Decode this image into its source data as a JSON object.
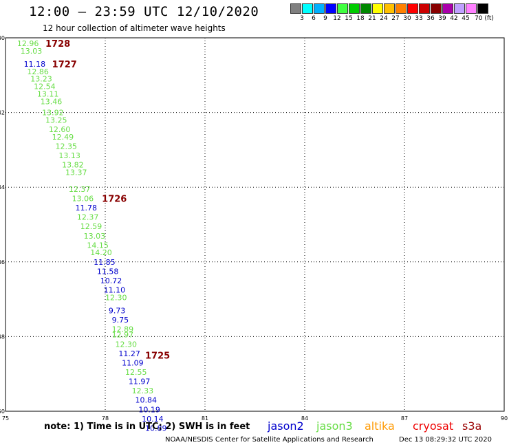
{
  "header": {
    "title": "12:00 — 23:59 UTC 12/10/2020",
    "subtitle": "12 hour collection of altimeter wave heights"
  },
  "scale": {
    "colors": [
      "#808080",
      "#00ffff",
      "#00b0ff",
      "#0000ff",
      "#40ff40",
      "#00cc00",
      "#008800",
      "#ffff00",
      "#ffc000",
      "#ff8000",
      "#ff0000",
      "#cc0000",
      "#880000",
      "#aa00aa",
      "#c0a0ff",
      "#ff80ff",
      "#000000"
    ],
    "labels": [
      "3",
      "6",
      "9",
      "12",
      "15",
      "18",
      "21",
      "24",
      "27",
      "30",
      "33",
      "36",
      "39",
      "42",
      "45",
      "70 (ft)"
    ]
  },
  "map": {
    "lon_ticks": [
      "75",
      "78",
      "81",
      "84",
      "87",
      "90"
    ],
    "lat_ticks": [
      "-40",
      "-42",
      "-44",
      "-46",
      "-48",
      "-50"
    ],
    "lon_range": [
      75,
      90
    ],
    "lat_range": [
      -40,
      -50
    ],
    "grid": "dotted",
    "passes": [
      {
        "label": "1728",
        "lon": 76.2,
        "lat": -40.15
      },
      {
        "label": "1727",
        "lon": 76.4,
        "lat": -40.7
      },
      {
        "label": "1726",
        "lon": 77.9,
        "lat": -44.3
      },
      {
        "label": "1725",
        "lon": 79.2,
        "lat": -48.5
      }
    ],
    "points": [
      {
        "v": "12.96",
        "lon": 75.35,
        "lat": -40.15,
        "sat": "jason3"
      },
      {
        "v": "13.03",
        "lon": 75.45,
        "lat": -40.35,
        "sat": "jason3"
      },
      {
        "v": "11.18",
        "lon": 75.55,
        "lat": -40.7,
        "sat": "jason2"
      },
      {
        "v": "12.86",
        "lon": 75.65,
        "lat": -40.9,
        "sat": "jason3"
      },
      {
        "v": "13.23",
        "lon": 75.75,
        "lat": -41.1,
        "sat": "jason3"
      },
      {
        "v": "12.54",
        "lon": 75.85,
        "lat": -41.3,
        "sat": "jason3"
      },
      {
        "v": "13.11",
        "lon": 75.95,
        "lat": -41.5,
        "sat": "jason3"
      },
      {
        "v": "13.46",
        "lon": 76.05,
        "lat": -41.7,
        "sat": "jason3"
      },
      {
        "v": "13.92",
        "lon": 76.1,
        "lat": -42.0,
        "sat": "jason3"
      },
      {
        "v": "13.25",
        "lon": 76.2,
        "lat": -42.2,
        "sat": "jason3"
      },
      {
        "v": "12.60",
        "lon": 76.3,
        "lat": -42.45,
        "sat": "jason3"
      },
      {
        "v": "12.49",
        "lon": 76.4,
        "lat": -42.65,
        "sat": "jason3"
      },
      {
        "v": "12.35",
        "lon": 76.5,
        "lat": -42.9,
        "sat": "jason3"
      },
      {
        "v": "13.13",
        "lon": 76.6,
        "lat": -43.15,
        "sat": "jason3"
      },
      {
        "v": "13.82",
        "lon": 76.7,
        "lat": -43.4,
        "sat": "jason3"
      },
      {
        "v": "13.37",
        "lon": 76.8,
        "lat": -43.6,
        "sat": "jason3"
      },
      {
        "v": "12.37",
        "lon": 76.9,
        "lat": -44.05,
        "sat": "jason3"
      },
      {
        "v": "13.06",
        "lon": 77.0,
        "lat": -44.3,
        "sat": "jason3"
      },
      {
        "v": "11.78",
        "lon": 77.1,
        "lat": -44.55,
        "sat": "jason2"
      },
      {
        "v": "12.37",
        "lon": 77.15,
        "lat": -44.8,
        "sat": "jason3"
      },
      {
        "v": "12.59",
        "lon": 77.25,
        "lat": -45.05,
        "sat": "jason3"
      },
      {
        "v": "13.03",
        "lon": 77.35,
        "lat": -45.3,
        "sat": "jason3"
      },
      {
        "v": "14.15",
        "lon": 77.45,
        "lat": -45.55,
        "sat": "jason3"
      },
      {
        "v": "14.20",
        "lon": 77.55,
        "lat": -45.75,
        "sat": "jason3"
      },
      {
        "v": "11.85",
        "lon": 77.65,
        "lat": -46.0,
        "sat": "jason2"
      },
      {
        "v": "11.58",
        "lon": 77.75,
        "lat": -46.25,
        "sat": "jason2"
      },
      {
        "v": "10.72",
        "lon": 77.85,
        "lat": -46.5,
        "sat": "jason2"
      },
      {
        "v": "11.10",
        "lon": 77.95,
        "lat": -46.75,
        "sat": "jason2"
      },
      {
        "v": "12.30",
        "lon": 78.0,
        "lat": -46.95,
        "sat": "jason3"
      },
      {
        "v": "9.73",
        "lon": 78.1,
        "lat": -47.3,
        "sat": "jason2"
      },
      {
        "v": "9.75",
        "lon": 78.2,
        "lat": -47.55,
        "sat": "jason2"
      },
      {
        "v": "12.89",
        "lon": 78.2,
        "lat": -47.8,
        "sat": "jason3"
      },
      {
        "v": "12.97",
        "lon": 78.2,
        "lat": -47.95,
        "sat": "jason3"
      },
      {
        "v": "12.30",
        "lon": 78.3,
        "lat": -48.2,
        "sat": "jason3"
      },
      {
        "v": "11.27",
        "lon": 78.4,
        "lat": -48.45,
        "sat": "jason2"
      },
      {
        "v": "11.09",
        "lon": 78.5,
        "lat": -48.7,
        "sat": "jason2"
      },
      {
        "v": "12.55",
        "lon": 78.6,
        "lat": -48.95,
        "sat": "jason3"
      },
      {
        "v": "11.97",
        "lon": 78.7,
        "lat": -49.2,
        "sat": "jason2"
      },
      {
        "v": "12.33",
        "lon": 78.8,
        "lat": -49.45,
        "sat": "jason3"
      },
      {
        "v": "10.84",
        "lon": 78.9,
        "lat": -49.7,
        "sat": "jason2"
      },
      {
        "v": "10.19",
        "lon": 79.0,
        "lat": -49.95,
        "sat": "jason2"
      },
      {
        "v": "10.14",
        "lon": 79.1,
        "lat": -50.2,
        "sat": "jason2"
      },
      {
        "v": "10.89",
        "lon": 79.2,
        "lat": -50.45,
        "sat": "jason2"
      }
    ]
  },
  "sat_colors": {
    "jason2": "#0000cc",
    "jason3": "#66dd44",
    "altika": "#ff9900",
    "cryosat": "#ee0000",
    "s3a": "#990000"
  },
  "footer": {
    "note": "note:  1) Time is in UTC;  2) SWH is in feet",
    "sats": [
      {
        "name": "jason2",
        "key": "jason2"
      },
      {
        "name": "jason3",
        "key": "jason3"
      },
      {
        "name": "altika",
        "key": "altika"
      },
      {
        "name": "cryosat",
        "key": "cryosat"
      },
      {
        "name": "s3a",
        "key": "s3a"
      }
    ],
    "credit": "NOAA/NESDIS Center for Satellite Applications and Research",
    "stamp": "Dec 13 08:29:32 UTC 2020"
  }
}
